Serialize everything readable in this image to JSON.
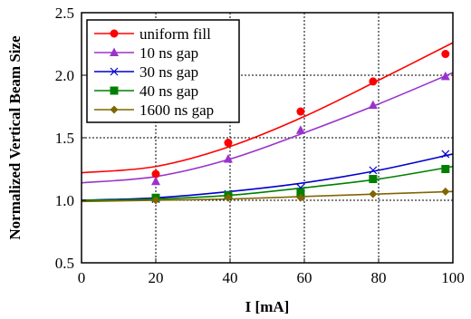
{
  "chart_data": {
    "type": "line",
    "title": "",
    "xlabel": "I [mA]",
    "ylabel": "Normalized Vertical Beam Size",
    "xlim": [
      0,
      100
    ],
    "ylim": [
      0.5,
      2.5
    ],
    "x_ticks": [
      0,
      20,
      40,
      60,
      80,
      100
    ],
    "y_ticks": [
      0.5,
      1.0,
      1.5,
      2.0,
      2.5
    ],
    "x_tick_labels": [
      "0",
      "20",
      "40",
      "60",
      "80",
      "100"
    ],
    "y_tick_labels": [
      "0.5",
      "1.0",
      "1.5",
      "2.0",
      "2.5"
    ],
    "grid": true,
    "legend_position": "top-left",
    "series": [
      {
        "name": "uniform fill",
        "color": "#ff0000",
        "marker": "circle",
        "points": [
          [
            20,
            1.21
          ],
          [
            39.5,
            1.46
          ],
          [
            59,
            1.71
          ],
          [
            78.5,
            1.95
          ],
          [
            98,
            2.17
          ]
        ],
        "fit": [
          [
            0,
            1.22
          ],
          [
            20,
            1.27
          ],
          [
            40,
            1.43
          ],
          [
            60,
            1.67
          ],
          [
            80,
            1.96
          ],
          [
            100,
            2.26
          ]
        ]
      },
      {
        "name": "10 ns gap",
        "color": "#9933cc",
        "marker": "triangle",
        "points": [
          [
            20,
            1.15
          ],
          [
            39.5,
            1.33
          ],
          [
            59,
            1.56
          ],
          [
            78.5,
            1.76
          ],
          [
            98,
            1.99
          ]
        ],
        "fit": [
          [
            0,
            1.14
          ],
          [
            20,
            1.19
          ],
          [
            40,
            1.33
          ],
          [
            60,
            1.54
          ],
          [
            80,
            1.77
          ],
          [
            100,
            2.02
          ]
        ]
      },
      {
        "name": "30 ns gap",
        "color": "#0000cc",
        "marker": "x",
        "points": [
          [
            20,
            1.01
          ],
          [
            39.5,
            1.05
          ],
          [
            59,
            1.1
          ],
          [
            78.5,
            1.24
          ],
          [
            98,
            1.37
          ]
        ],
        "fit": [
          [
            0,
            1.0
          ],
          [
            20,
            1.02
          ],
          [
            40,
            1.07
          ],
          [
            60,
            1.14
          ],
          [
            80,
            1.24
          ],
          [
            100,
            1.37
          ]
        ]
      },
      {
        "name": "40 ns gap",
        "color": "#008000",
        "marker": "square",
        "points": [
          [
            20,
            1.02
          ],
          [
            39.5,
            1.04
          ],
          [
            59,
            1.06
          ],
          [
            78.5,
            1.17
          ],
          [
            98,
            1.25
          ]
        ],
        "fit": [
          [
            0,
            1.0
          ],
          [
            20,
            1.01
          ],
          [
            40,
            1.04
          ],
          [
            60,
            1.1
          ],
          [
            80,
            1.17
          ],
          [
            100,
            1.27
          ]
        ]
      },
      {
        "name": "1600 ns gap",
        "color": "#806600",
        "marker": "diamond",
        "points": [
          [
            20,
            1.0
          ],
          [
            39.5,
            1.02
          ],
          [
            59,
            1.02
          ],
          [
            78.5,
            1.05
          ],
          [
            98,
            1.07
          ]
        ],
        "fit": [
          [
            0,
            0.99
          ],
          [
            20,
            1.0
          ],
          [
            40,
            1.01
          ],
          [
            60,
            1.03
          ],
          [
            80,
            1.05
          ],
          [
            100,
            1.07
          ]
        ]
      }
    ]
  }
}
